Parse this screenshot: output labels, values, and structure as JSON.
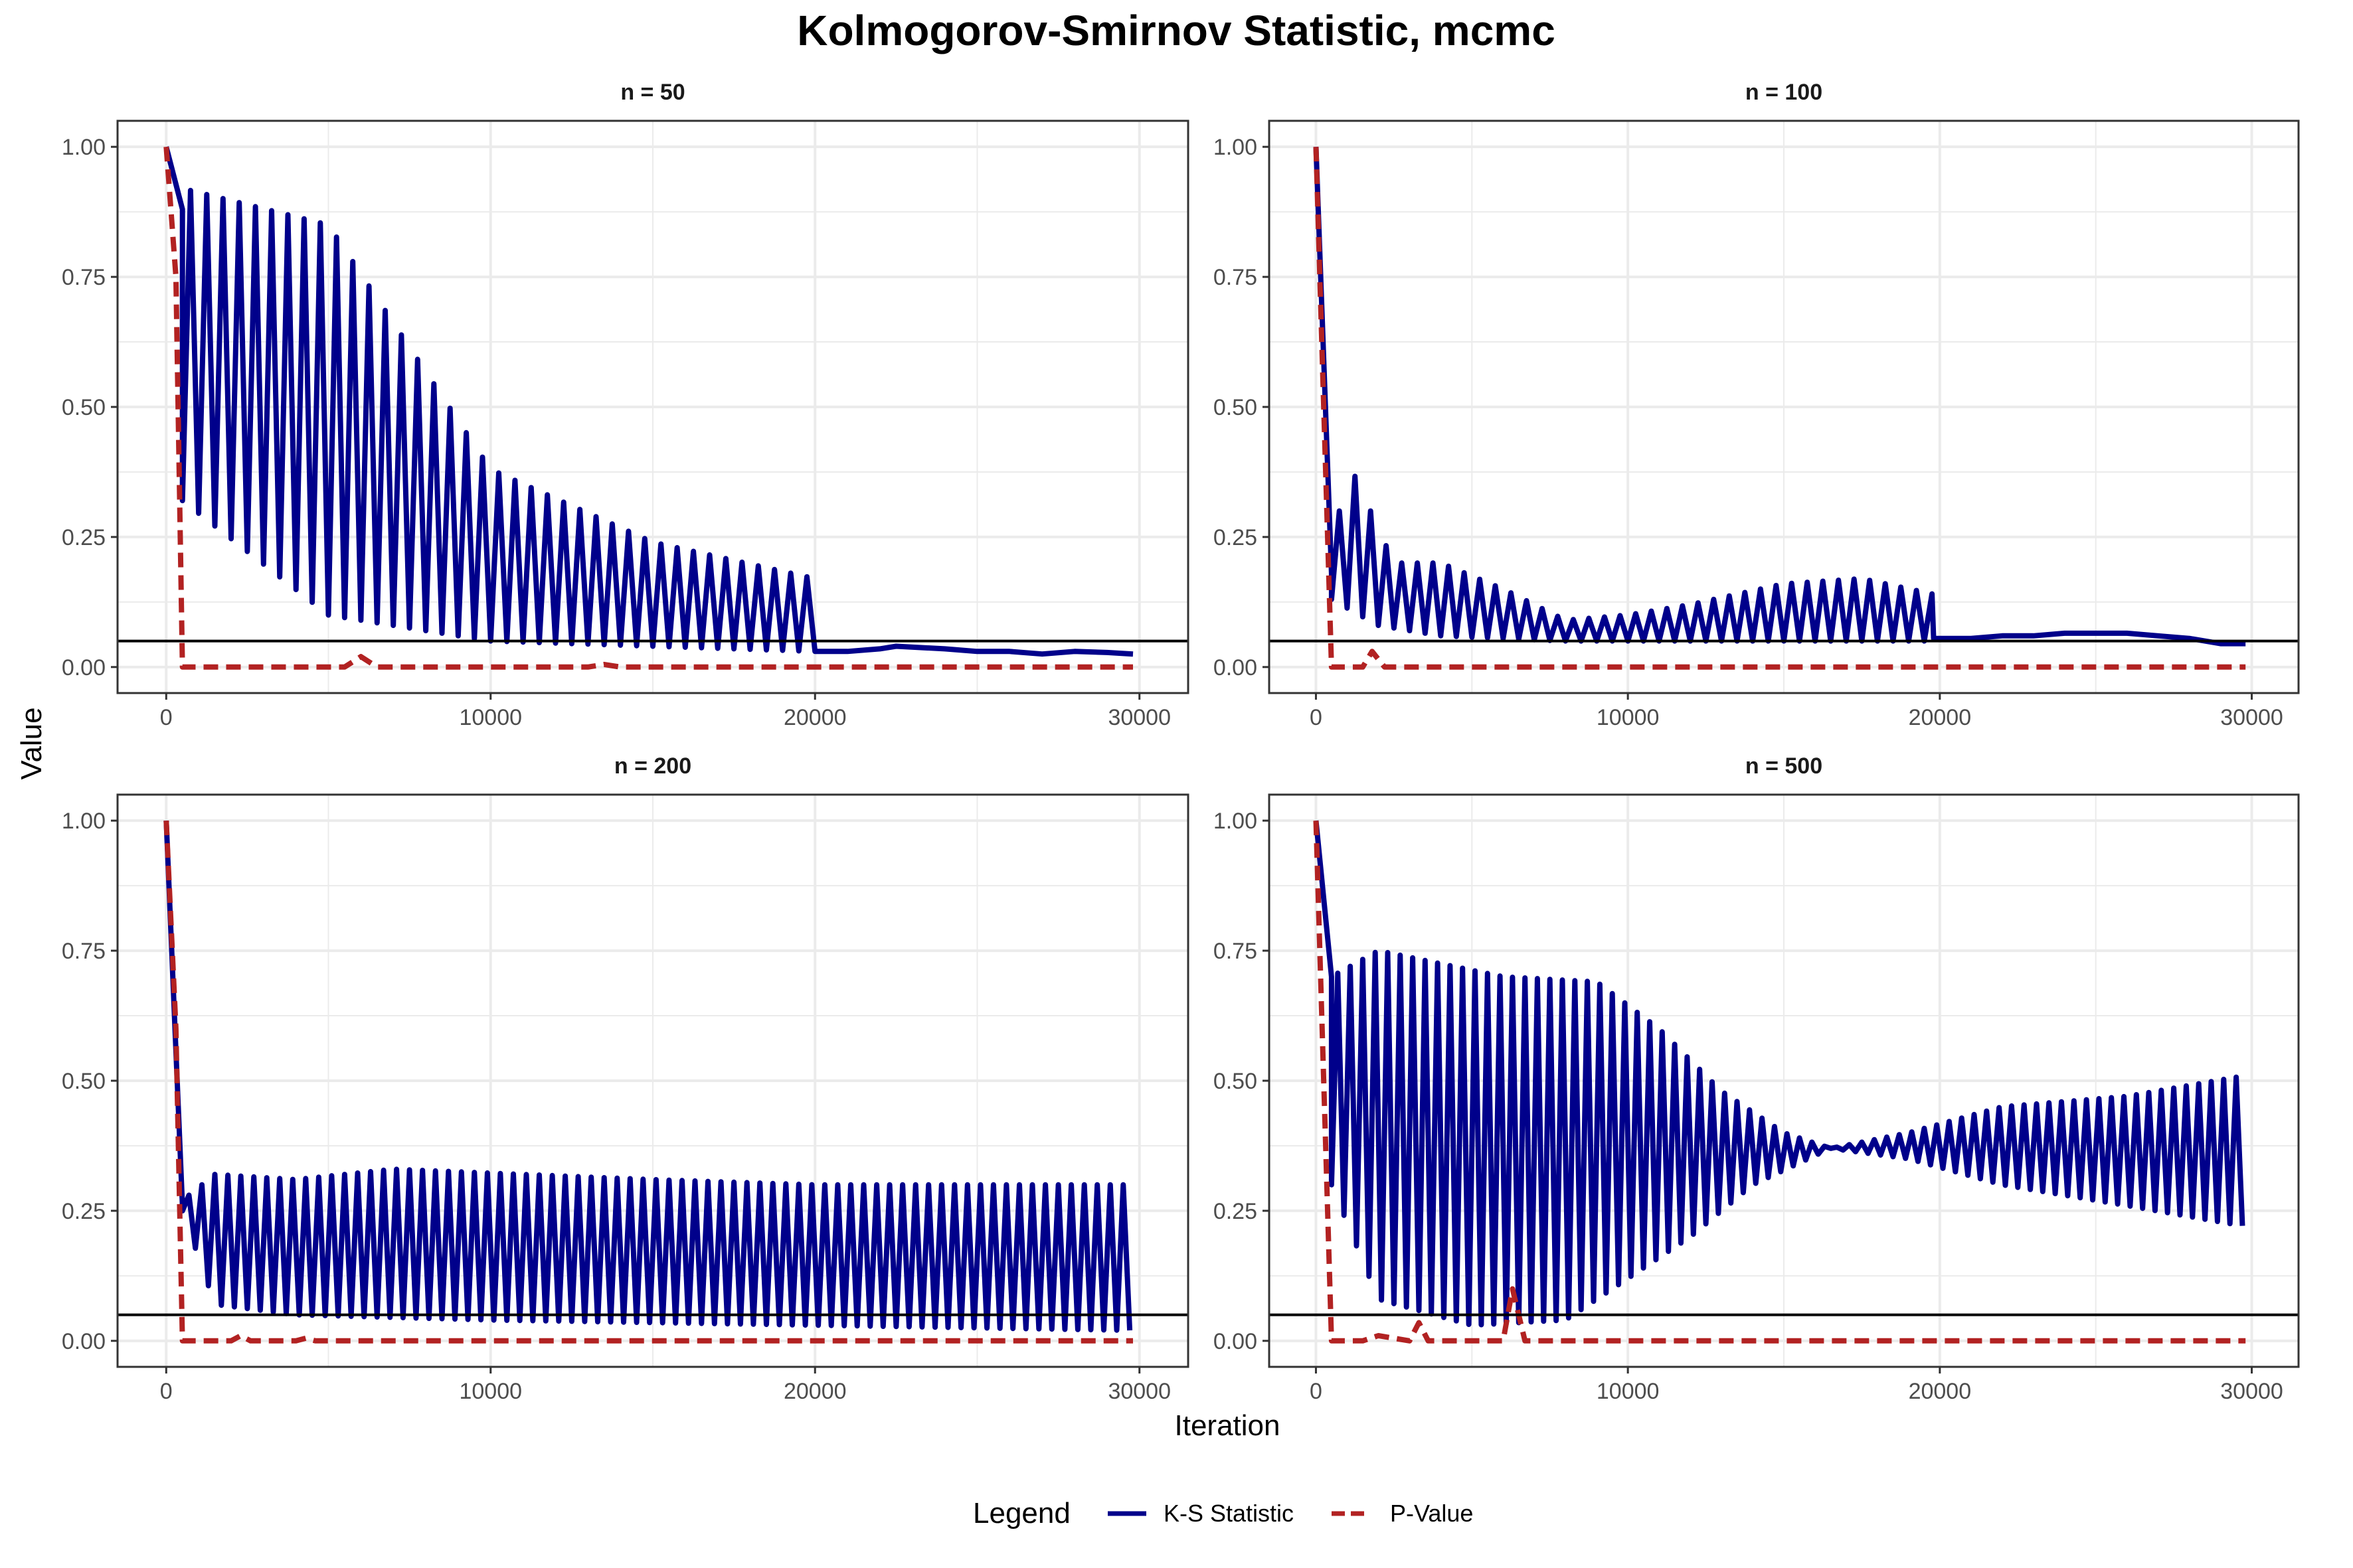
{
  "title": "Kolmogorov-Smirnov Statistic, mcmc",
  "xlabel": "Iteration",
  "ylabel": "Value",
  "legend": {
    "title": "Legend",
    "placement": "bottom",
    "items": [
      {
        "label": "K-S Statistic",
        "color": "#00008B",
        "dash": "solid"
      },
      {
        "label": "P-Value",
        "color": "#B22222",
        "dash": "dashed"
      }
    ]
  },
  "colors": {
    "ks": "#00008B",
    "pvalue": "#B22222",
    "reference": "#000000",
    "grid": "#ebebeb",
    "border": "#333333"
  },
  "xticks": [
    0,
    10000,
    20000,
    30000
  ],
  "yticks": [
    0.0,
    0.25,
    0.5,
    0.75,
    1.0
  ],
  "ytick_labels": [
    "0.00",
    "0.25",
    "0.50",
    "0.75",
    "1.00"
  ],
  "xtick_labels": [
    "0",
    "10000",
    "20000",
    "30000"
  ],
  "chart_data": {
    "type": "line",
    "xlim": [
      -1500,
      31500
    ],
    "ylim": [
      -0.05,
      1.05
    ],
    "reference_line_y": 0.05,
    "grid": true,
    "panels": [
      {
        "label": "n = 50",
        "ks": {
          "x_start": 500,
          "x_end": 20000,
          "period": 500,
          "high": [
            [
              500,
              0.92
            ],
            [
              5000,
              0.85
            ],
            [
              10000,
              0.38
            ],
            [
              15000,
              0.24
            ],
            [
              20000,
              0.17
            ]
          ],
          "low": [
            [
              500,
              0.32
            ],
            [
              5000,
              0.1
            ],
            [
              10000,
              0.05
            ],
            [
              20000,
              0.03
            ]
          ],
          "initial": [
            [
              0,
              1.0
            ],
            [
              500,
              0.88
            ]
          ],
          "tail": [
            [
              20000,
              0.03
            ],
            [
              21000,
              0.03
            ],
            [
              22000,
              0.035
            ],
            [
              22500,
              0.04
            ],
            [
              24000,
              0.035
            ],
            [
              25000,
              0.03
            ],
            [
              26000,
              0.03
            ],
            [
              27000,
              0.025
            ],
            [
              28000,
              0.03
            ],
            [
              29000,
              0.028
            ],
            [
              29800,
              0.025
            ]
          ]
        },
        "pvalue": [
          [
            0,
            1.0
          ],
          [
            300,
            0.75
          ],
          [
            500,
            0.0
          ],
          [
            5500,
            0.0
          ],
          [
            6000,
            0.02
          ],
          [
            6500,
            0.0
          ],
          [
            13000,
            0.0
          ],
          [
            13500,
            0.005
          ],
          [
            14000,
            0.0
          ],
          [
            29800,
            0.0
          ]
        ]
      },
      {
        "label": "n = 100",
        "ks": {
          "x_start": 500,
          "x_end": 19800,
          "period": 500,
          "high": [
            [
              500,
              0.2
            ],
            [
              1000,
              0.4
            ],
            [
              2500,
              0.2
            ],
            [
              4000,
              0.2
            ],
            [
              6000,
              0.15
            ],
            [
              8000,
              0.09
            ],
            [
              10000,
              0.1
            ],
            [
              12000,
              0.12
            ],
            [
              15000,
              0.16
            ],
            [
              17500,
              0.17
            ],
            [
              19800,
              0.14
            ]
          ],
          "low": [
            [
              500,
              0.13
            ],
            [
              2000,
              0.08
            ],
            [
              4000,
              0.06
            ],
            [
              8000,
              0.05
            ],
            [
              12000,
              0.05
            ],
            [
              19800,
              0.05
            ]
          ],
          "initial": [
            [
              0,
              1.0
            ],
            [
              500,
              0.18
            ]
          ],
          "tail": [
            [
              19800,
              0.055
            ],
            [
              21000,
              0.055
            ],
            [
              22000,
              0.06
            ],
            [
              23000,
              0.06
            ],
            [
              24000,
              0.065
            ],
            [
              25000,
              0.065
            ],
            [
              26000,
              0.065
            ],
            [
              27000,
              0.06
            ],
            [
              28000,
              0.055
            ],
            [
              29000,
              0.045
            ],
            [
              29800,
              0.045
            ]
          ]
        },
        "pvalue": [
          [
            0,
            1.0
          ],
          [
            200,
            0.6
          ],
          [
            500,
            0.0
          ],
          [
            1500,
            0.0
          ],
          [
            1800,
            0.03
          ],
          [
            2200,
            0.0
          ],
          [
            29800,
            0.0
          ]
        ]
      },
      {
        "label": "n = 200",
        "ks": {
          "x_start": 500,
          "x_end": 29800,
          "period": 400,
          "high": [
            [
              500,
              0.27
            ],
            [
              1500,
              0.32
            ],
            [
              4000,
              0.31
            ],
            [
              7000,
              0.33
            ],
            [
              15000,
              0.31
            ],
            [
              20000,
              0.3
            ],
            [
              29800,
              0.3
            ]
          ],
          "low": [
            [
              500,
              0.25
            ],
            [
              1500,
              0.07
            ],
            [
              4000,
              0.05
            ],
            [
              10000,
              0.04
            ],
            [
              20000,
              0.03
            ],
            [
              29800,
              0.02
            ]
          ],
          "initial": [
            [
              0,
              1.0
            ],
            [
              500,
              0.26
            ]
          ],
          "tail": []
        },
        "pvalue": [
          [
            0,
            1.0
          ],
          [
            300,
            0.6
          ],
          [
            500,
            0.0
          ],
          [
            2000,
            0.0
          ],
          [
            2300,
            0.01
          ],
          [
            2600,
            0.0
          ],
          [
            4000,
            0.0
          ],
          [
            4300,
            0.005
          ],
          [
            4600,
            0.0
          ],
          [
            29800,
            0.0
          ]
        ]
      },
      {
        "label": "n = 500",
        "ks": {
          "x_start": 500,
          "x_end": 29800,
          "period": 400,
          "high": [
            [
              500,
              0.7
            ],
            [
              2000,
              0.75
            ],
            [
              6000,
              0.7
            ],
            [
              9000,
              0.69
            ],
            [
              11000,
              0.6
            ],
            [
              13000,
              0.48
            ],
            [
              15000,
              0.4
            ],
            [
              16500,
              0.37
            ],
            [
              19000,
              0.4
            ],
            [
              22000,
              0.45
            ],
            [
              26000,
              0.47
            ],
            [
              29800,
              0.51
            ]
          ],
          "low": [
            [
              500,
              0.3
            ],
            [
              2000,
              0.08
            ],
            [
              5000,
              0.03
            ],
            [
              8000,
              0.04
            ],
            [
              10000,
              0.12
            ],
            [
              12000,
              0.2
            ],
            [
              14000,
              0.3
            ],
            [
              16500,
              0.37
            ],
            [
              19000,
              0.35
            ],
            [
              22000,
              0.3
            ],
            [
              26000,
              0.26
            ],
            [
              29800,
              0.22
            ]
          ],
          "initial": [
            [
              0,
              1.0
            ],
            [
              500,
              0.7
            ]
          ],
          "tail": []
        },
        "pvalue": [
          [
            0,
            1.0
          ],
          [
            200,
            0.6
          ],
          [
            500,
            0.0
          ],
          [
            1500,
            0.0
          ],
          [
            2000,
            0.01
          ],
          [
            3000,
            0.0
          ],
          [
            3300,
            0.035
          ],
          [
            3600,
            0.0
          ],
          [
            6000,
            0.0
          ],
          [
            6300,
            0.1
          ],
          [
            6700,
            0.0
          ],
          [
            29800,
            0.0
          ]
        ]
      }
    ]
  }
}
